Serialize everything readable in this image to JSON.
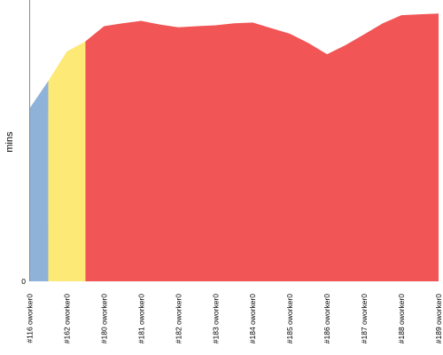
{
  "chart_data": {
    "type": "area",
    "ylabel": "mins",
    "y_tick_labels": [
      "0"
    ],
    "ylim": [
      0,
      100
    ],
    "categories": [
      "#116 oworker0",
      "#162 oworker0",
      "#180 oworker0",
      "#181 oworker0",
      "#182 oworker0",
      "#183 oworker0",
      "#184 oworker0",
      "#185 oworker0",
      "#186 oworker0",
      "#187 oworker0",
      "#188 oworker0",
      "#189 oworker0"
    ],
    "x": [
      0.0,
      0.5,
      1.0,
      1.5,
      2.0,
      2.5,
      3.0,
      3.5,
      4.0,
      4.5,
      5.0,
      5.5,
      6.0,
      6.5,
      7.0,
      7.5,
      8.0,
      8.5,
      9.0,
      9.5,
      10.0,
      10.5,
      11.0
    ],
    "values": [
      61.5,
      71.2,
      81.7,
      85.3,
      90.7,
      91.7,
      92.6,
      91.3,
      90.3,
      90.7,
      91.0,
      91.7,
      92.0,
      90.0,
      88.0,
      84.7,
      80.7,
      84.0,
      87.8,
      91.7,
      94.6,
      94.9,
      95.2
    ],
    "segment_colors": [
      {
        "from": 0.0,
        "to": 0.5,
        "color": "#8eb2d8"
      },
      {
        "from": 0.5,
        "to": 1.5,
        "color": "#fde976"
      },
      {
        "from": 1.5,
        "to": 11.0,
        "color": "#f25555"
      }
    ],
    "axis_color": "#888888"
  }
}
